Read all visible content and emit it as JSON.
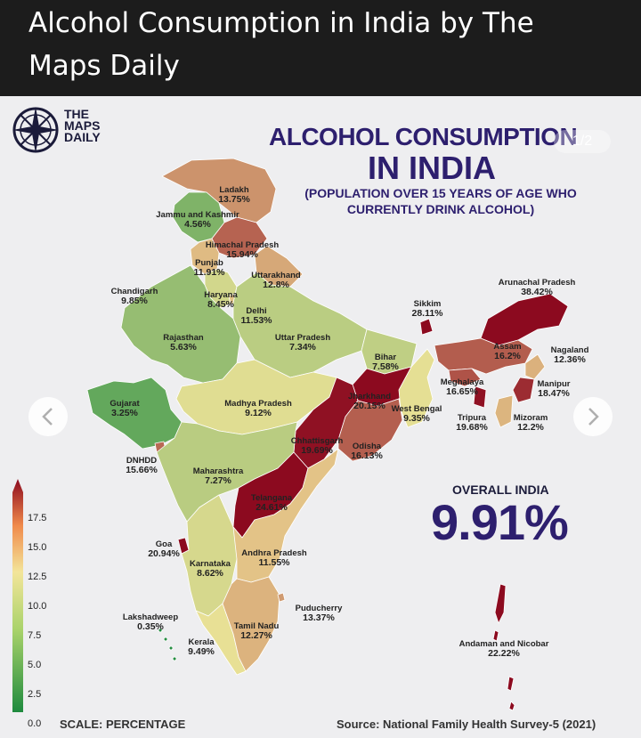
{
  "header": {
    "title": "Alcohol Consumption in India by The Maps Daily"
  },
  "logo": {
    "line1": "THE",
    "line2": "MAPS",
    "line3": "DAILY",
    "icon": "compass-icon"
  },
  "map": {
    "title_line1": "ALCOHOL CONSUMPTION",
    "title_line2": "IN INDIA",
    "subtitle": "(POPULATION OVER 15 YEARS OF AGE WHO CURRENTLY DRINK ALCOHOL)",
    "counter": "1/2",
    "overall_label": "OVERALL INDIA",
    "overall_value": "9.91%",
    "scale_label": "SCALE: PERCENTAGE",
    "source": "Source: National Family Health Survey-5 (2021)",
    "scale_ticks": [
      "17.5",
      "15.0",
      "12.5",
      "10.0",
      "7.5",
      "5.0",
      "2.5",
      "0.0"
    ],
    "colors": {
      "low": "#1e8a3e",
      "mid": "#f3e59a",
      "high": "#8c0a1f"
    },
    "regions": [
      {
        "name": "Ladakh",
        "value": "13.75%",
        "pct": 13.75
      },
      {
        "name": "Jammu and Kashmir",
        "value": "4.56%",
        "pct": 4.56
      },
      {
        "name": "Himachal Pradesh",
        "value": "15.94%",
        "pct": 15.94
      },
      {
        "name": "Punjab",
        "value": "11.91%",
        "pct": 11.91
      },
      {
        "name": "Uttarakhand",
        "value": "12.8%",
        "pct": 12.8
      },
      {
        "name": "Chandigarh",
        "value": "9.85%",
        "pct": 9.85
      },
      {
        "name": "Haryana",
        "value": "8.45%",
        "pct": 8.45
      },
      {
        "name": "Delhi",
        "value": "11.53%",
        "pct": 11.53
      },
      {
        "name": "Rajasthan",
        "value": "5.63%",
        "pct": 5.63
      },
      {
        "name": "Uttar Pradesh",
        "value": "7.34%",
        "pct": 7.34
      },
      {
        "name": "Bihar",
        "value": "7.58%",
        "pct": 7.58
      },
      {
        "name": "Sikkim",
        "value": "28.11%",
        "pct": 28.11
      },
      {
        "name": "Arunachal Pradesh",
        "value": "38.42%",
        "pct": 38.42
      },
      {
        "name": "Assam",
        "value": "16.2%",
        "pct": 16.2
      },
      {
        "name": "Nagaland",
        "value": "12.36%",
        "pct": 12.36
      },
      {
        "name": "Meghalaya",
        "value": "16.65%",
        "pct": 16.65
      },
      {
        "name": "Manipur",
        "value": "18.47%",
        "pct": 18.47
      },
      {
        "name": "Tripura",
        "value": "19.68%",
        "pct": 19.68
      },
      {
        "name": "Mizoram",
        "value": "12.2%",
        "pct": 12.2
      },
      {
        "name": "Gujarat",
        "value": "3.25%",
        "pct": 3.25
      },
      {
        "name": "Madhya Pradesh",
        "value": "9.12%",
        "pct": 9.12
      },
      {
        "name": "Jharkhand",
        "value": "20.15%",
        "pct": 20.15
      },
      {
        "name": "West Bengal",
        "value": "9.35%",
        "pct": 9.35
      },
      {
        "name": "Chhattisgarh",
        "value": "19.69%",
        "pct": 19.69
      },
      {
        "name": "Odisha",
        "value": "16.13%",
        "pct": 16.13
      },
      {
        "name": "DNHDD",
        "value": "15.66%",
        "pct": 15.66
      },
      {
        "name": "Maharashtra",
        "value": "7.27%",
        "pct": 7.27
      },
      {
        "name": "Telangana",
        "value": "24.61%",
        "pct": 24.61
      },
      {
        "name": "Goa",
        "value": "20.94%",
        "pct": 20.94
      },
      {
        "name": "Karnataka",
        "value": "8.62%",
        "pct": 8.62
      },
      {
        "name": "Andhra Pradesh",
        "value": "11.55%",
        "pct": 11.55
      },
      {
        "name": "Lakshadweep",
        "value": "0.35%",
        "pct": 0.35
      },
      {
        "name": "Kerala",
        "value": "9.49%",
        "pct": 9.49
      },
      {
        "name": "Tamil Nadu",
        "value": "12.27%",
        "pct": 12.27
      },
      {
        "name": "Puducherry",
        "value": "13.37%",
        "pct": 13.37
      },
      {
        "name": "Andaman and Nicobar",
        "value": "22.22%",
        "pct": 22.22
      }
    ]
  }
}
